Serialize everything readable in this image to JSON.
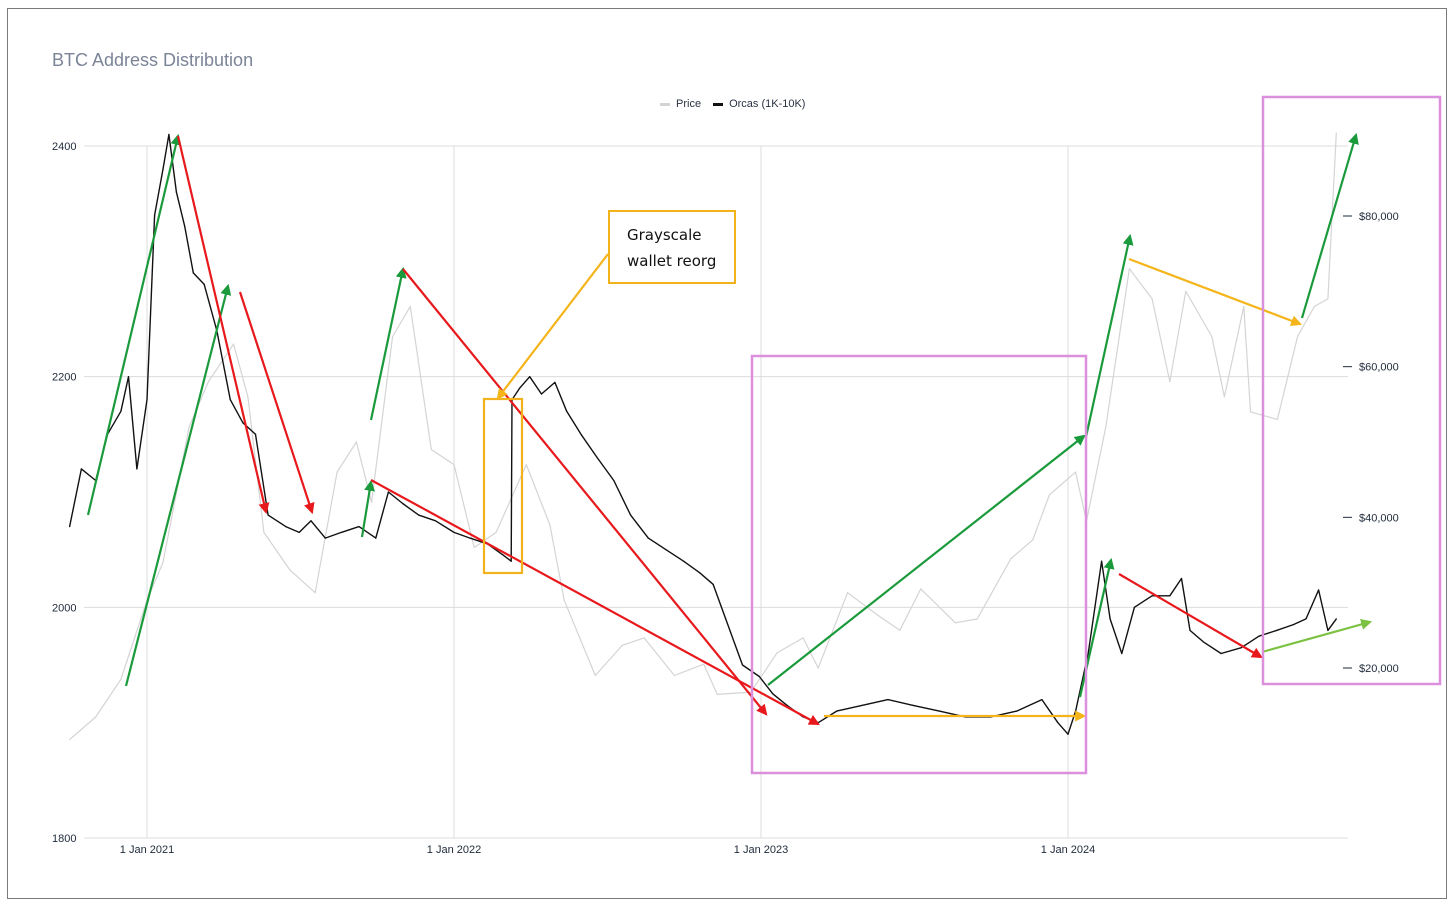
{
  "chart_data": {
    "type": "line",
    "title": "BTC Address Distribution",
    "legend": [
      {
        "name": "Price",
        "color": "#d4d4d4"
      },
      {
        "name": "Orcas (1K-10K)",
        "color": "#000000"
      }
    ],
    "legend_position": "top-center",
    "x_ticks": [
      "1 Jan 2021",
      "1 Jan 2022",
      "1 Jan 2023",
      "1 Jan 2024"
    ],
    "y_left": {
      "ticks": [
        "2400",
        "2200",
        "2000",
        "1800"
      ],
      "range": [
        1800,
        2400
      ]
    },
    "y_right": {
      "ticks": [
        "$80,000",
        "$60,000",
        "$40,000",
        "$20,000"
      ],
      "range": [
        10000,
        95000
      ]
    },
    "grid": true,
    "series": [
      {
        "name": "Orcas (1K-10K)",
        "axis": "left",
        "color": "#111111",
        "points": [
          [
            "2020-10-01",
            2070
          ],
          [
            "2020-10-15",
            2120
          ],
          [
            "2020-11-01",
            2110
          ],
          [
            "2020-11-15",
            2150
          ],
          [
            "2020-12-01",
            2170
          ],
          [
            "2020-12-10",
            2200
          ],
          [
            "2020-12-20",
            2120
          ],
          [
            "2021-01-01",
            2180
          ],
          [
            "2021-01-10",
            2340
          ],
          [
            "2021-01-20",
            2380
          ],
          [
            "2021-01-27",
            2410
          ],
          [
            "2021-02-05",
            2360
          ],
          [
            "2021-02-15",
            2330
          ],
          [
            "2021-02-25",
            2290
          ],
          [
            "2021-03-10",
            2280
          ],
          [
            "2021-03-25",
            2240
          ],
          [
            "2021-04-10",
            2180
          ],
          [
            "2021-04-25",
            2160
          ],
          [
            "2021-05-10",
            2150
          ],
          [
            "2021-05-25",
            2080
          ],
          [
            "2021-06-15",
            2070
          ],
          [
            "2021-07-01",
            2065
          ],
          [
            "2021-07-15",
            2075
          ],
          [
            "2021-08-01",
            2060
          ],
          [
            "2021-08-20",
            2065
          ],
          [
            "2021-09-10",
            2070
          ],
          [
            "2021-09-30",
            2060
          ],
          [
            "2021-10-15",
            2100
          ],
          [
            "2021-11-01",
            2090
          ],
          [
            "2021-11-20",
            2080
          ],
          [
            "2021-12-10",
            2075
          ],
          [
            "2022-01-01",
            2065
          ],
          [
            "2022-01-20",
            2060
          ],
          [
            "2022-02-10",
            2055
          ],
          [
            "2022-03-01",
            2045
          ],
          [
            "2022-03-10",
            2040
          ],
          [
            "2022-03-11",
            2180
          ],
          [
            "2022-03-20",
            2190
          ],
          [
            "2022-04-01",
            2200
          ],
          [
            "2022-04-15",
            2185
          ],
          [
            "2022-05-01",
            2195
          ],
          [
            "2022-05-15",
            2170
          ],
          [
            "2022-06-01",
            2150
          ],
          [
            "2022-06-20",
            2130
          ],
          [
            "2022-07-10",
            2110
          ],
          [
            "2022-07-30",
            2080
          ],
          [
            "2022-08-20",
            2060
          ],
          [
            "2022-09-10",
            2050
          ],
          [
            "2022-10-01",
            2040
          ],
          [
            "2022-10-20",
            2030
          ],
          [
            "2022-11-05",
            2020
          ],
          [
            "2022-11-20",
            1990
          ],
          [
            "2022-12-10",
            1950
          ],
          [
            "2022-12-30",
            1940
          ],
          [
            "2023-01-15",
            1925
          ],
          [
            "2023-02-01",
            1915
          ],
          [
            "2023-02-20",
            1905
          ],
          [
            "2023-03-10",
            1900
          ],
          [
            "2023-04-01",
            1910
          ],
          [
            "2023-05-01",
            1915
          ],
          [
            "2023-06-01",
            1920
          ],
          [
            "2023-07-01",
            1915
          ],
          [
            "2023-08-01",
            1910
          ],
          [
            "2023-09-01",
            1905
          ],
          [
            "2023-10-01",
            1905
          ],
          [
            "2023-11-01",
            1910
          ],
          [
            "2023-12-01",
            1920
          ],
          [
            "2023-12-20",
            1900
          ],
          [
            "2024-01-01",
            1890
          ],
          [
            "2024-01-10",
            1910
          ],
          [
            "2024-01-25",
            1960
          ],
          [
            "2024-02-10",
            2040
          ],
          [
            "2024-02-20",
            1990
          ],
          [
            "2024-03-05",
            1960
          ],
          [
            "2024-03-20",
            2000
          ],
          [
            "2024-04-10",
            2010
          ],
          [
            "2024-05-01",
            2010
          ],
          [
            "2024-05-15",
            2025
          ],
          [
            "2024-05-25",
            1980
          ],
          [
            "2024-06-10",
            1970
          ],
          [
            "2024-07-01",
            1960
          ],
          [
            "2024-07-25",
            1965
          ],
          [
            "2024-08-15",
            1975
          ],
          [
            "2024-09-05",
            1980
          ],
          [
            "2024-09-25",
            1985
          ],
          [
            "2024-10-10",
            1990
          ],
          [
            "2024-10-25",
            2015
          ],
          [
            "2024-11-05",
            1980
          ],
          [
            "2024-11-15",
            1990
          ]
        ]
      },
      {
        "name": "Price",
        "axis": "right",
        "color": "#d4d4d4",
        "points": [
          [
            "2020-10-01",
            10500
          ],
          [
            "2020-11-01",
            13500
          ],
          [
            "2020-12-01",
            18500
          ],
          [
            "2021-01-01",
            29000
          ],
          [
            "2021-01-20",
            34000
          ],
          [
            "2021-02-20",
            52000
          ],
          [
            "2021-03-15",
            58000
          ],
          [
            "2021-04-14",
            63000
          ],
          [
            "2021-05-01",
            56000
          ],
          [
            "2021-05-20",
            38000
          ],
          [
            "2021-06-20",
            33000
          ],
          [
            "2021-07-20",
            30000
          ],
          [
            "2021-08-15",
            46000
          ],
          [
            "2021-09-07",
            50000
          ],
          [
            "2021-09-25",
            42000
          ],
          [
            "2021-10-20",
            64000
          ],
          [
            "2021-11-10",
            68000
          ],
          [
            "2021-12-05",
            49000
          ],
          [
            "2022-01-01",
            47000
          ],
          [
            "2022-01-25",
            36000
          ],
          [
            "2022-02-20",
            38000
          ],
          [
            "2022-03-28",
            47000
          ],
          [
            "2022-04-25",
            39000
          ],
          [
            "2022-05-12",
            29000
          ],
          [
            "2022-06-18",
            19000
          ],
          [
            "2022-07-20",
            23000
          ],
          [
            "2022-08-15",
            24000
          ],
          [
            "2022-09-20",
            19000
          ],
          [
            "2022-10-25",
            20500
          ],
          [
            "2022-11-10",
            16500
          ],
          [
            "2022-12-20",
            16800
          ],
          [
            "2023-01-20",
            22000
          ],
          [
            "2023-02-20",
            24000
          ],
          [
            "2023-03-10",
            20000
          ],
          [
            "2023-04-14",
            30000
          ],
          [
            "2023-05-20",
            27000
          ],
          [
            "2023-06-15",
            25000
          ],
          [
            "2023-07-10",
            30500
          ],
          [
            "2023-08-20",
            26000
          ],
          [
            "2023-09-15",
            26500
          ],
          [
            "2023-10-25",
            34500
          ],
          [
            "2023-11-20",
            37000
          ],
          [
            "2023-12-10",
            43000
          ],
          [
            "2024-01-10",
            46000
          ],
          [
            "2024-01-23",
            39500
          ],
          [
            "2024-02-15",
            52000
          ],
          [
            "2024-03-14",
            73000
          ],
          [
            "2024-04-10",
            69000
          ],
          [
            "2024-05-01",
            58000
          ],
          [
            "2024-05-20",
            70000
          ],
          [
            "2024-06-20",
            64000
          ],
          [
            "2024-07-05",
            56000
          ],
          [
            "2024-07-28",
            68000
          ],
          [
            "2024-08-05",
            54000
          ],
          [
            "2024-09-06",
            53000
          ],
          [
            "2024-09-30",
            64000
          ],
          [
            "2024-10-20",
            68000
          ],
          [
            "2024-11-05",
            69000
          ],
          [
            "2024-11-15",
            91000
          ]
        ]
      }
    ],
    "annotations": {
      "callout_text": [
        "Grayscale",
        "wallet reorg"
      ]
    }
  }
}
